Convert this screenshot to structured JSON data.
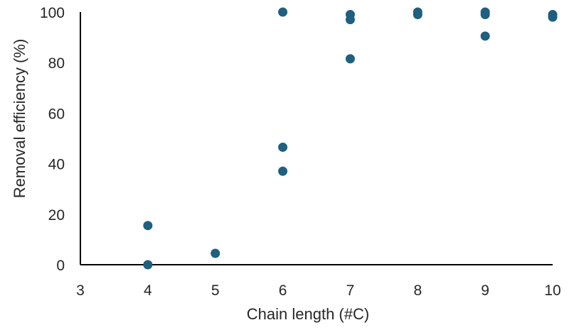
{
  "chart_data": {
    "type": "scatter",
    "title": "",
    "xlabel": "Chain length (#C)",
    "ylabel": "Removal efficiency (%)",
    "xlim": [
      3,
      10
    ],
    "ylim": [
      0,
      100
    ],
    "x_ticks": [
      3,
      4,
      5,
      6,
      7,
      8,
      9,
      10
    ],
    "y_ticks": [
      0,
      20,
      40,
      60,
      80,
      100
    ],
    "grid": false,
    "legend": "none",
    "marker_color": "#1f5f7f",
    "points": [
      {
        "x": 4,
        "y": 15.5
      },
      {
        "x": 4,
        "y": 0
      },
      {
        "x": 5,
        "y": 4.5
      },
      {
        "x": 6,
        "y": 100
      },
      {
        "x": 6,
        "y": 46.5
      },
      {
        "x": 6,
        "y": 37
      },
      {
        "x": 7,
        "y": 99
      },
      {
        "x": 7,
        "y": 97
      },
      {
        "x": 7,
        "y": 81.5
      },
      {
        "x": 8,
        "y": 100
      },
      {
        "x": 8,
        "y": 99
      },
      {
        "x": 9,
        "y": 100
      },
      {
        "x": 9,
        "y": 99
      },
      {
        "x": 9,
        "y": 90.5
      },
      {
        "x": 10,
        "y": 99
      },
      {
        "x": 10,
        "y": 98
      }
    ]
  }
}
